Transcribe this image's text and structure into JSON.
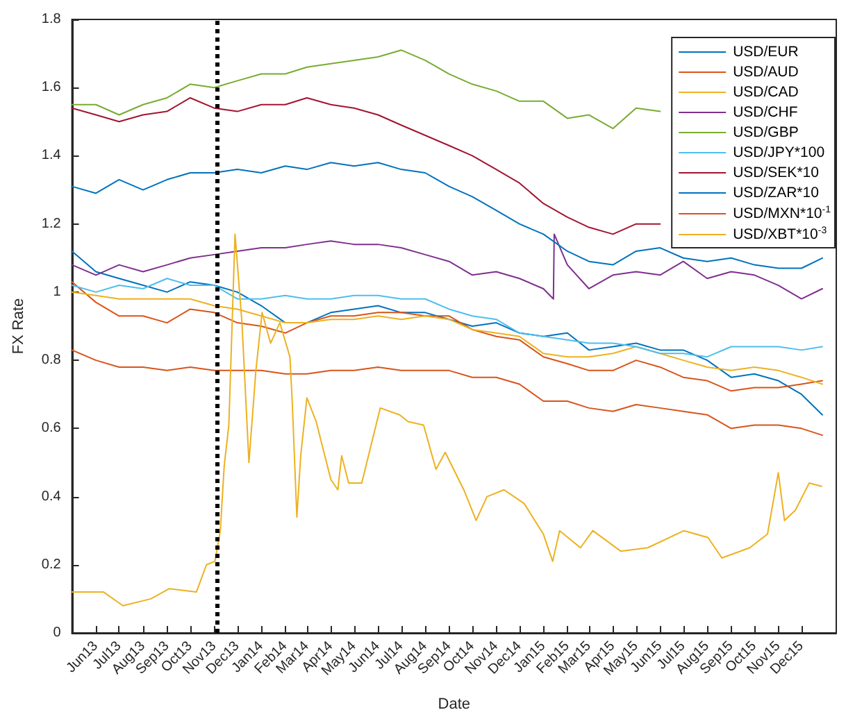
{
  "chart_data": {
    "type": "line",
    "xlabel": "Date",
    "ylabel": "FX Rate",
    "legend": "top right",
    "grid": false,
    "marker": "none",
    "line_style": "solid",
    "xlim": [
      "2013-05-01",
      "2016-01-15"
    ],
    "ylim": [
      0,
      1.8
    ],
    "yticks": [
      0,
      0.2,
      0.4,
      0.6,
      0.8,
      1,
      1.2,
      1.4,
      1.6,
      1.8
    ],
    "xticks": [
      {
        "value": "2013-06-01",
        "label": "Jun13"
      },
      {
        "value": "2013-07-01",
        "label": "Jul13"
      },
      {
        "value": "2013-08-01",
        "label": "Aug13"
      },
      {
        "value": "2013-09-01",
        "label": "Sep13"
      },
      {
        "value": "2013-10-01",
        "label": "Oct13"
      },
      {
        "value": "2013-11-01",
        "label": "Nov13"
      },
      {
        "value": "2013-12-01",
        "label": "Dec13"
      },
      {
        "value": "2014-01-01",
        "label": "Jan14"
      },
      {
        "value": "2014-02-01",
        "label": "Feb14"
      },
      {
        "value": "2014-03-01",
        "label": "Mar14"
      },
      {
        "value": "2014-04-01",
        "label": "Apr14"
      },
      {
        "value": "2014-05-01",
        "label": "May14"
      },
      {
        "value": "2014-06-01",
        "label": "Jun14"
      },
      {
        "value": "2014-07-01",
        "label": "Jul14"
      },
      {
        "value": "2014-08-01",
        "label": "Aug14"
      },
      {
        "value": "2014-09-01",
        "label": "Sep14"
      },
      {
        "value": "2014-10-01",
        "label": "Oct14"
      },
      {
        "value": "2014-11-01",
        "label": "Nov14"
      },
      {
        "value": "2014-12-01",
        "label": "Dec14"
      },
      {
        "value": "2015-01-01",
        "label": "Jan15"
      },
      {
        "value": "2015-02-01",
        "label": "Feb15"
      },
      {
        "value": "2015-03-01",
        "label": "Mar15"
      },
      {
        "value": "2015-04-01",
        "label": "Apr15"
      },
      {
        "value": "2015-05-01",
        "label": "May15"
      },
      {
        "value": "2015-06-01",
        "label": "Jun15"
      },
      {
        "value": "2015-07-01",
        "label": "Jul15"
      },
      {
        "value": "2015-08-01",
        "label": "Aug15"
      },
      {
        "value": "2015-09-01",
        "label": "Sep15"
      },
      {
        "value": "2015-10-01",
        "label": "Oct15"
      },
      {
        "value": "2015-11-01",
        "label": "Nov15"
      },
      {
        "value": "2015-12-01",
        "label": "Dec15"
      }
    ],
    "x": [
      "2013-05-01",
      "2013-06-01",
      "2013-07-01",
      "2013-08-01",
      "2013-09-01",
      "2013-10-01",
      "2013-11-01",
      "2013-12-01",
      "2014-01-01",
      "2014-02-01",
      "2014-03-01",
      "2014-04-01",
      "2014-05-01",
      "2014-06-01",
      "2014-07-01",
      "2014-08-01",
      "2014-09-01",
      "2014-10-01",
      "2014-11-01",
      "2014-12-01",
      "2015-01-01",
      "2015-02-01",
      "2015-03-01",
      "2015-04-01",
      "2015-05-01",
      "2015-06-01",
      "2015-07-01",
      "2015-08-01",
      "2015-09-01",
      "2015-10-01",
      "2015-11-01",
      "2015-12-01",
      "2015-12-28"
    ],
    "ref_lines": [
      {
        "axis": "x",
        "value": "2013-11-05",
        "color": "#000000",
        "line_style": "dotted"
      }
    ],
    "series": [
      {
        "name": "USD/EUR",
        "color": "#0072bd",
        "values": [
          1.12,
          1.06,
          1.04,
          1.02,
          1.0,
          1.03,
          1.02,
          1.0,
          0.96,
          0.91,
          0.91,
          0.94,
          0.95,
          0.96,
          0.94,
          0.94,
          0.92,
          0.9,
          0.91,
          0.88,
          0.87,
          0.88,
          0.83,
          0.84,
          0.85,
          0.83,
          0.83,
          0.8,
          0.75,
          0.76,
          0.74,
          0.7,
          0.64
        ]
      },
      {
        "name": "USD/AUD",
        "color": "#d95319",
        "values": [
          1.03,
          0.97,
          0.93,
          0.93,
          0.91,
          0.95,
          0.94,
          0.91,
          0.9,
          0.88,
          0.91,
          0.93,
          0.93,
          0.94,
          0.94,
          0.93,
          0.93,
          0.89,
          0.87,
          0.86,
          0.81,
          0.79,
          0.77,
          0.77,
          0.8,
          0.78,
          0.75,
          0.74,
          0.71,
          0.72,
          0.72,
          0.73,
          0.74
        ]
      },
      {
        "name": "USD/CAD",
        "color": "#edb120",
        "values": [
          1.0,
          0.99,
          0.98,
          0.98,
          0.98,
          0.98,
          0.96,
          0.95,
          0.93,
          0.91,
          0.91,
          0.92,
          0.92,
          0.93,
          0.92,
          0.93,
          0.92,
          0.89,
          0.88,
          0.87,
          0.82,
          0.81,
          0.81,
          0.82,
          0.84,
          0.82,
          0.8,
          0.78,
          0.77,
          0.78,
          0.77,
          0.75,
          0.73
        ]
      },
      {
        "name": "USD/CHF",
        "color": "#7e2f8e",
        "x": [
          "2013-05-01",
          "2013-06-01",
          "2013-07-01",
          "2013-08-01",
          "2013-09-01",
          "2013-10-01",
          "2013-11-01",
          "2013-12-01",
          "2014-01-01",
          "2014-02-01",
          "2014-03-01",
          "2014-04-01",
          "2014-05-01",
          "2014-06-01",
          "2014-07-01",
          "2014-08-01",
          "2014-09-01",
          "2014-10-01",
          "2014-11-01",
          "2014-12-01",
          "2015-01-01",
          "2015-01-14",
          "2015-01-15",
          "2015-02-01",
          "2015-03-01",
          "2015-04-01",
          "2015-05-01",
          "2015-06-01",
          "2015-07-01",
          "2015-08-01",
          "2015-09-01",
          "2015-10-01",
          "2015-11-01",
          "2015-12-01",
          "2015-12-28"
        ],
        "values": [
          1.08,
          1.05,
          1.08,
          1.06,
          1.08,
          1.1,
          1.11,
          1.12,
          1.13,
          1.13,
          1.14,
          1.15,
          1.14,
          1.14,
          1.13,
          1.11,
          1.09,
          1.05,
          1.06,
          1.04,
          1.01,
          0.98,
          1.17,
          1.08,
          1.01,
          1.05,
          1.06,
          1.05,
          1.09,
          1.04,
          1.06,
          1.05,
          1.02,
          0.98,
          1.01
        ]
      },
      {
        "name": "USD/GBP",
        "color": "#77ac30",
        "values": [
          1.55,
          1.55,
          1.52,
          1.55,
          1.57,
          1.61,
          1.6,
          1.62,
          1.64,
          1.64,
          1.66,
          1.67,
          1.68,
          1.69,
          1.71,
          1.68,
          1.64,
          1.61,
          1.59,
          1.56,
          1.56,
          1.51,
          1.52,
          1.48,
          1.54,
          1.53,
          null,
          null,
          null,
          null,
          null,
          null,
          null
        ]
      },
      {
        "name": "USD/JPY*100",
        "color": "#4dbeee",
        "values": [
          1.02,
          1.0,
          1.02,
          1.01,
          1.04,
          1.02,
          1.02,
          0.98,
          0.98,
          0.99,
          0.98,
          0.98,
          0.99,
          0.99,
          0.98,
          0.98,
          0.95,
          0.93,
          0.92,
          0.88,
          0.87,
          0.86,
          0.85,
          0.85,
          0.84,
          0.82,
          0.82,
          0.81,
          0.84,
          0.84,
          0.84,
          0.83,
          0.84
        ]
      },
      {
        "name": "USD/SEK*10",
        "color": "#a2142f",
        "values": [
          1.54,
          1.52,
          1.5,
          1.52,
          1.53,
          1.57,
          1.54,
          1.53,
          1.55,
          1.55,
          1.57,
          1.55,
          1.54,
          1.52,
          1.49,
          1.46,
          1.43,
          1.4,
          1.36,
          1.32,
          1.26,
          1.22,
          1.19,
          1.17,
          1.2,
          1.2,
          null,
          null,
          null,
          null,
          null,
          null,
          null
        ]
      },
      {
        "name": "USD/ZAR*10",
        "color": "#0072bd",
        "values": [
          1.31,
          1.29,
          1.33,
          1.3,
          1.33,
          1.35,
          1.35,
          1.36,
          1.35,
          1.37,
          1.36,
          1.38,
          1.37,
          1.38,
          1.36,
          1.35,
          1.31,
          1.28,
          1.24,
          1.2,
          1.17,
          1.12,
          1.09,
          1.08,
          1.12,
          1.13,
          1.1,
          1.09,
          1.1,
          1.08,
          1.07,
          1.07,
          1.1
        ]
      },
      {
        "name": "USD/MXN*10$^{-1}$",
        "color": "#d95319",
        "values": [
          0.83,
          0.8,
          0.78,
          0.78,
          0.77,
          0.78,
          0.77,
          0.77,
          0.77,
          0.76,
          0.76,
          0.77,
          0.77,
          0.78,
          0.77,
          0.77,
          0.77,
          0.75,
          0.75,
          0.73,
          0.68,
          0.68,
          0.66,
          0.65,
          0.67,
          0.66,
          0.65,
          0.64,
          0.6,
          0.61,
          0.61,
          0.6,
          0.58
        ]
      },
      {
        "name": "USD/XBT*10$^{-3}$",
        "color": "#edb120",
        "x": [
          "2013-05-01",
          "2013-06-11",
          "2013-07-06",
          "2013-08-11",
          "2013-09-04",
          "2013-10-09",
          "2013-10-22",
          "2013-11-02",
          "2013-11-09",
          "2013-11-14",
          "2013-11-20",
          "2013-11-28",
          "2013-12-07",
          "2013-12-16",
          "2013-12-25",
          "2014-01-02",
          "2014-01-13",
          "2014-01-25",
          "2014-02-07",
          "2014-02-10",
          "2014-02-16",
          "2014-02-21",
          "2014-03-01",
          "2014-03-13",
          "2014-04-01",
          "2014-04-10",
          "2014-04-15",
          "2014-04-24",
          "2014-05-11",
          "2014-05-24",
          "2014-06-04",
          "2014-06-29",
          "2014-07-10",
          "2014-07-30",
          "2014-08-15",
          "2014-08-27",
          "2014-09-20",
          "2014-10-06",
          "2014-10-20",
          "2014-11-11",
          "2014-12-07",
          "2015-01-01",
          "2015-01-13",
          "2015-01-22",
          "2015-02-18",
          "2015-03-06",
          "2015-04-11",
          "2015-05-16",
          "2015-07-02",
          "2015-08-02",
          "2015-08-20",
          "2015-09-25",
          "2015-10-18",
          "2015-11-01",
          "2015-11-09",
          "2015-11-23",
          "2015-12-11",
          "2015-12-27"
        ],
        "values": [
          0.12,
          0.12,
          0.08,
          0.1,
          0.13,
          0.12,
          0.2,
          0.21,
          0.3,
          0.49,
          0.61,
          1.17,
          0.91,
          0.5,
          0.77,
          0.94,
          0.85,
          0.91,
          0.81,
          0.68,
          0.34,
          0.52,
          0.69,
          0.62,
          0.45,
          0.42,
          0.52,
          0.44,
          0.44,
          0.56,
          0.66,
          0.64,
          0.62,
          0.61,
          0.48,
          0.53,
          0.42,
          0.33,
          0.4,
          0.42,
          0.38,
          0.29,
          0.21,
          0.3,
          0.25,
          0.3,
          0.24,
          0.25,
          0.3,
          0.28,
          0.22,
          0.25,
          0.29,
          0.47,
          0.33,
          0.36,
          0.44,
          0.43
        ]
      }
    ]
  }
}
